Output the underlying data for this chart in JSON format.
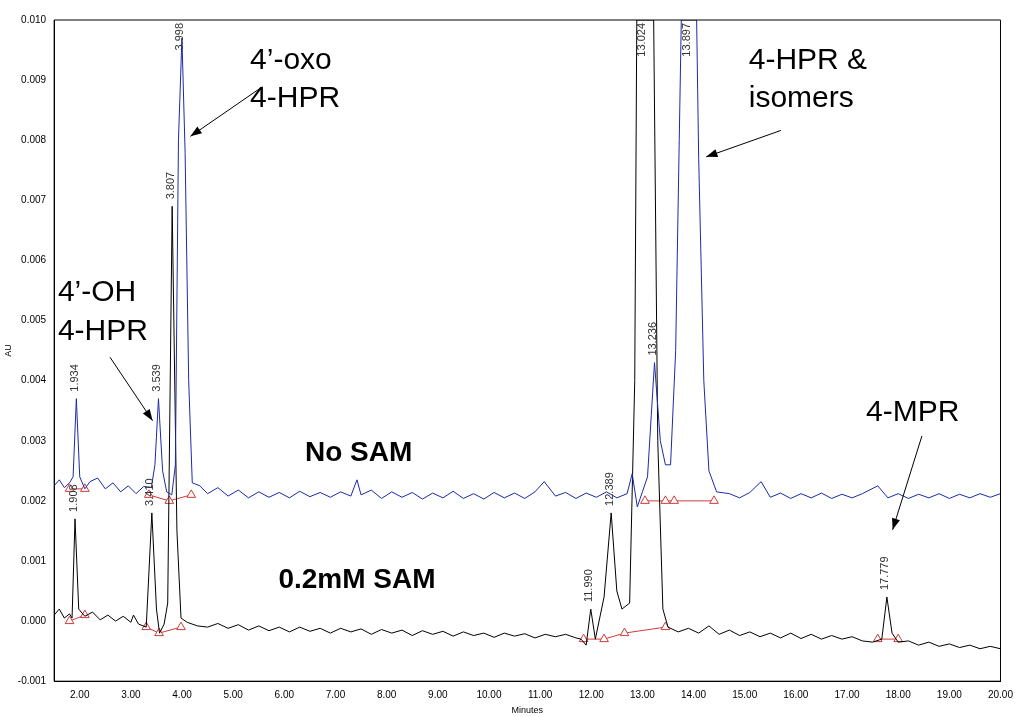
{
  "chart_data": {
    "type": "line",
    "xlabel": "Minutes",
    "ylabel": "AU",
    "xlim": [
      1.5,
      20
    ],
    "xticks": [
      {
        "value": 2,
        "label": "2.00"
      },
      {
        "value": 3,
        "label": "3.00"
      },
      {
        "value": 4,
        "label": "4.00"
      },
      {
        "value": 5,
        "label": "5.00"
      },
      {
        "value": 6,
        "label": "6.00"
      },
      {
        "value": 7,
        "label": "7.00"
      },
      {
        "value": 8,
        "label": "8.00"
      },
      {
        "value": 9,
        "label": "9.00"
      },
      {
        "value": 10,
        "label": "10.00"
      },
      {
        "value": 11,
        "label": "11.00"
      },
      {
        "value": 12,
        "label": "12.00"
      },
      {
        "value": 13,
        "label": "13.00"
      },
      {
        "value": 14,
        "label": "14.00"
      },
      {
        "value": 15,
        "label": "15.00"
      },
      {
        "value": 16,
        "label": "16.00"
      },
      {
        "value": 17,
        "label": "17.00"
      },
      {
        "value": 18,
        "label": "18.00"
      },
      {
        "value": 19,
        "label": "19.00"
      },
      {
        "value": 20,
        "label": "20.00"
      }
    ],
    "ylim": [
      -0.001,
      0.01
    ],
    "yticks": [
      {
        "value": -0.001,
        "label": "-0.001"
      },
      {
        "value": 0,
        "label": "0.000"
      },
      {
        "value": 0.001,
        "label": "0.001"
      },
      {
        "value": 0.002,
        "label": "0.002"
      },
      {
        "value": 0.003,
        "label": "0.003"
      },
      {
        "value": 0.004,
        "label": "0.004"
      },
      {
        "value": 0.005,
        "label": "0.005"
      },
      {
        "value": 0.006,
        "label": "0.006"
      },
      {
        "value": 0.007,
        "label": "0.007"
      },
      {
        "value": 0.008,
        "label": "0.008"
      },
      {
        "value": 0.009,
        "label": "0.009"
      },
      {
        "value": 0.01,
        "label": "0.010"
      }
    ],
    "grid": false,
    "legend": false,
    "marker": "none",
    "series": [
      {
        "name": "No SAM",
        "color": "#1c2aa8",
        "x": [
          1.5,
          1.6,
          1.7,
          1.8,
          1.87,
          1.934,
          2.0,
          2.1,
          2.2,
          2.35,
          2.5,
          2.65,
          2.8,
          2.95,
          3.1,
          3.25,
          3.4,
          3.47,
          3.539,
          3.62,
          3.7,
          3.8,
          3.87,
          3.93,
          3.998,
          4.06,
          4.13,
          4.2,
          4.35,
          4.5,
          4.7,
          4.9,
          5.1,
          5.3,
          5.5,
          5.7,
          5.9,
          6.1,
          6.3,
          6.5,
          6.7,
          6.9,
          7.1,
          7.3,
          7.42,
          7.5,
          7.7,
          7.9,
          8.1,
          8.3,
          8.5,
          8.7,
          8.9,
          9.1,
          9.3,
          9.5,
          9.7,
          9.9,
          10.1,
          10.3,
          10.5,
          10.7,
          10.9,
          11.08,
          11.3,
          11.5,
          11.7,
          11.9,
          12.1,
          12.3,
          12.5,
          12.7,
          12.8,
          12.9,
          13.0,
          13.1,
          13.236,
          13.35,
          13.45,
          13.55,
          13.65,
          13.72,
          13.76,
          14.06,
          14.1,
          14.2,
          14.3,
          14.45,
          14.7,
          14.9,
          15.1,
          15.32,
          15.5,
          15.7,
          15.9,
          16.1,
          16.3,
          16.5,
          16.7,
          16.9,
          17.1,
          17.3,
          17.6,
          17.8,
          18.0,
          18.2,
          18.4,
          18.6,
          18.8,
          19.0,
          19.2,
          19.4,
          19.6,
          19.8,
          20.0
        ],
        "values": [
          0.00225,
          0.00235,
          0.00222,
          0.0023,
          0.0024,
          0.0037,
          0.0024,
          0.0022,
          0.00232,
          0.00238,
          0.0022,
          0.0023,
          0.00215,
          0.00225,
          0.00212,
          0.00224,
          0.00222,
          0.0026,
          0.0037,
          0.0025,
          0.00215,
          0.0021,
          0.0026,
          0.008,
          0.0097,
          0.0078,
          0.004,
          0.0023,
          0.00225,
          0.00212,
          0.00222,
          0.00208,
          0.00218,
          0.00205,
          0.00215,
          0.00206,
          0.00214,
          0.00205,
          0.00216,
          0.00207,
          0.00214,
          0.00206,
          0.00215,
          0.00208,
          0.00235,
          0.0021,
          0.00218,
          0.00204,
          0.00215,
          0.00206,
          0.00214,
          0.00203,
          0.00213,
          0.00205,
          0.00216,
          0.00204,
          0.00212,
          0.00203,
          0.00214,
          0.00205,
          0.00213,
          0.00204,
          0.00215,
          0.00232,
          0.00208,
          0.00214,
          0.00204,
          0.00213,
          0.00206,
          0.00215,
          0.00205,
          0.00212,
          0.00245,
          0.0019,
          0.00215,
          0.0024,
          0.0043,
          0.003,
          0.0026,
          0.0026,
          0.0045,
          0.008,
          0.01,
          0.01,
          0.0077,
          0.004,
          0.0025,
          0.00215,
          0.00212,
          0.00205,
          0.00214,
          0.00232,
          0.00206,
          0.00213,
          0.00204,
          0.00212,
          0.00205,
          0.00213,
          0.00204,
          0.00211,
          0.00205,
          0.00212,
          0.00225,
          0.00205,
          0.00212,
          0.00204,
          0.00211,
          0.00205,
          0.00212,
          0.00204,
          0.00211,
          0.00205,
          0.00212,
          0.00206,
          0.00212
        ]
      },
      {
        "name": "0.2mM SAM",
        "color": "#000000",
        "x": [
          1.5,
          1.6,
          1.7,
          1.8,
          1.85,
          1.908,
          1.98,
          2.1,
          2.25,
          2.4,
          2.55,
          2.7,
          2.85,
          3.0,
          3.05,
          3.15,
          3.3,
          3.41,
          3.5,
          3.56,
          3.65,
          3.72,
          3.807,
          3.9,
          3.98,
          4.1,
          4.3,
          4.5,
          4.7,
          4.9,
          5.1,
          5.3,
          5.5,
          5.7,
          5.9,
          6.1,
          6.3,
          6.5,
          6.7,
          6.9,
          7.1,
          7.3,
          7.5,
          7.7,
          7.9,
          8.1,
          8.3,
          8.5,
          8.7,
          8.9,
          9.1,
          9.3,
          9.5,
          9.7,
          9.9,
          10.1,
          10.3,
          10.5,
          10.7,
          10.9,
          11.1,
          11.3,
          11.5,
          11.7,
          11.8,
          11.9,
          11.99,
          12.08,
          12.25,
          12.389,
          12.5,
          12.6,
          12.75,
          12.85,
          12.89,
          13.22,
          13.3,
          13.4,
          13.5,
          13.7,
          13.9,
          14.1,
          14.3,
          14.5,
          14.7,
          14.9,
          15.1,
          15.3,
          15.5,
          15.7,
          15.9,
          16.1,
          16.3,
          16.5,
          16.7,
          16.9,
          17.1,
          17.3,
          17.5,
          17.68,
          17.779,
          17.88,
          18.0,
          18.2,
          18.4,
          18.6,
          18.8,
          19.0,
          19.2,
          19.4,
          19.6,
          19.8,
          20.0
        ],
        "values": [
          0.0001,
          0.0002,
          5e-05,
          0.00012,
          5e-05,
          0.0017,
          0.0002,
          8e-05,
          0.00015,
          2e-05,
          0.0001,
          0,
          8e-05,
          -2e-05,
          0.0001,
          -5e-05,
          -0.0001,
          0.0018,
          0.0002,
          -0.0002,
          -5e-05,
          0.0003,
          0.0069,
          0.0015,
          5e-05,
          -2e-05,
          -8e-05,
          -0.0001,
          -4e-05,
          -0.00012,
          -6e-05,
          -0.00015,
          -8e-05,
          -0.00016,
          -0.0001,
          -0.00018,
          -0.0001,
          -0.00017,
          -0.00012,
          -0.0002,
          -0.00012,
          -0.00018,
          -0.00013,
          -0.00022,
          -0.00014,
          -0.0002,
          -0.00015,
          -0.00024,
          -0.00016,
          -0.00022,
          -0.00017,
          -0.00025,
          -0.00018,
          -0.00024,
          -0.0002,
          -0.00027,
          -0.0002,
          -0.00025,
          -0.00021,
          -0.00028,
          -0.00022,
          -0.00026,
          -0.00022,
          -0.00028,
          -0.0003,
          -0.0004,
          0.0002,
          -0.0003,
          0.0004,
          0.0018,
          0.0005,
          0.0002,
          0.0003,
          0.004,
          0.01,
          0.01,
          0.003,
          0.0002,
          -0.0001,
          -0.00018,
          -0.00012,
          -0.0002,
          -8e-05,
          -0.00022,
          -0.00015,
          -0.00024,
          -0.00018,
          -0.00026,
          -0.0002,
          -0.00028,
          -0.0002,
          -0.00029,
          -0.00022,
          -0.0003,
          -0.00024,
          -0.0003,
          -0.00026,
          -0.00033,
          -0.00035,
          -0.0003,
          0.0004,
          -0.0002,
          -0.00035,
          -0.00033,
          -0.0004,
          -0.00035,
          -0.00042,
          -0.00038,
          -0.00044,
          -0.0004,
          -0.00046,
          -0.00042,
          -0.00046
        ]
      },
      {
        "type": "line",
        "marker": "triangle",
        "color": "#d03c3c",
        "x": [
          1.8,
          2.1
        ],
        "values": [
          0.0022,
          0.0022
        ]
      },
      {
        "type": "line",
        "marker": "triangle",
        "color": "#d03c3c",
        "x": [
          3.35,
          3.75,
          4.18
        ],
        "values": [
          0.0021,
          0.002,
          0.0021
        ]
      },
      {
        "type": "line",
        "marker": "triangle",
        "color": "#d03c3c",
        "x": [
          13.05,
          13.45,
          13.62,
          14.4
        ],
        "values": [
          0.002,
          0.002,
          0.002,
          0.002
        ]
      },
      {
        "type": "line",
        "marker": "triangle",
        "color": "#d03c3c",
        "x": [
          1.8,
          2.1
        ],
        "values": [
          0.0,
          0.0001
        ]
      },
      {
        "type": "line",
        "marker": "triangle",
        "color": "#d03c3c",
        "x": [
          3.3,
          3.55,
          3.98
        ],
        "values": [
          -0.0001,
          -0.0002,
          -0.0001
        ]
      },
      {
        "type": "line",
        "marker": "triangle",
        "color": "#d03c3c",
        "x": [
          11.85,
          12.25,
          12.65,
          13.45
        ],
        "values": [
          -0.0003,
          -0.0003,
          -0.0002,
          -0.0001
        ]
      },
      {
        "type": "line",
        "marker": "triangle",
        "color": "#d03c3c",
        "x": [
          17.6,
          18.0
        ],
        "values": [
          -0.0003,
          -0.0003
        ]
      }
    ],
    "annotations": [
      "4’-OH\n4-HPR",
      "4’-oxo\n4-HPR",
      "4-HPR &\nisomers",
      "4-MPR",
      {
        "text": "1.934",
        "x": 1.934,
        "y": 0.0037
      },
      {
        "text": "3.539",
        "x": 3.539,
        "y": 0.0037
      },
      {
        "text": "3.998",
        "x": 3.998,
        "y": 0.0097
      },
      {
        "text": "13.236",
        "x": 13.236,
        "y": 0.0043
      },
      {
        "text": "13.897",
        "x": 13.897,
        "y": 0.01
      },
      {
        "text": "1.908",
        "x": 1.908,
        "y": 0.0017
      },
      {
        "text": "3.410",
        "x": 3.41,
        "y": 0.0018
      },
      {
        "text": "3.807",
        "x": 3.807,
        "y": 0.0069
      },
      {
        "text": "11.990",
        "x": 11.99,
        "y": 0.0002
      },
      {
        "text": "12.389",
        "x": 12.389,
        "y": 0.0018
      },
      {
        "text": "13.024",
        "x": 13.024,
        "y": 0.01
      },
      {
        "text": "17.779",
        "x": 17.779,
        "y": 0.0004
      }
    ]
  }
}
